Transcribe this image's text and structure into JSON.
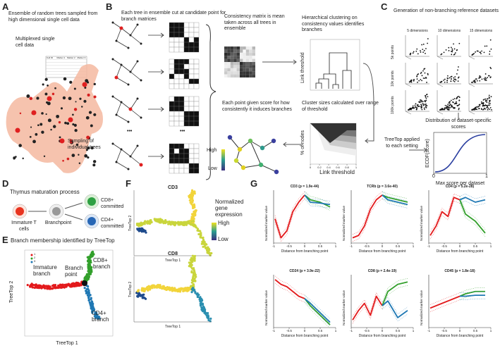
{
  "A": {
    "label": "A",
    "title": "Ensemble of random trees sampled from high dimensional single cell data",
    "table_caption": "Multiplexed single cell data",
    "table_header": [
      "Cell ID",
      "Marker 1",
      "Marker 2",
      "Marker 3"
    ],
    "sampling": "Sampling of individual trees"
  },
  "B": {
    "label": "B",
    "cut_text": "Each tree in ensemble cut at candidate point for branch matrices",
    "ellipsis": "•••",
    "consistency_text": "Consistency matrix is mean taken across all trees in ensemble",
    "clustering_text": "Hierarchical clustering on consistency values identifies branches",
    "dendro_ylabel": "Link threshold",
    "cluster_text": "Cluster sizes calculated over range of threshold",
    "area_ylabel": "% of nodes",
    "area_xlabel": "Link threshold",
    "area_xticks": [
      0,
      0.2,
      0.4,
      0.6,
      0.8,
      1
    ],
    "score_text": "Each point given score for how consistently it induces branches",
    "high": "High",
    "low": "Low"
  },
  "C": {
    "label": "C",
    "title": "Generation of non-branching reference datasets",
    "dimensions": [
      "5 dimensions",
      "10 dimensions",
      "15 dimensions"
    ],
    "points": [
      "5k points",
      "10k points",
      "100k points"
    ],
    "dist_text": "Distribution of dataset-specific scores",
    "applied_text": "TreeTop applied to each setting",
    "ecdf_ylabel": "ECDF(score)",
    "ecdf_xlabel": "Max score per dataset",
    "ecdf_xticks": [
      0,
      1
    ]
  },
  "D": {
    "label": "D",
    "title": "Thymus maturation process",
    "immature": "Immature T cells",
    "branchpoint": "Branchpoint",
    "cd8": "CD8+ committed",
    "cd4": "CD4+ committed"
  },
  "E": {
    "label": "E",
    "title": "Branch membership identified by TreeTop",
    "legend": [
      {
        "name": "1",
        "color": "#e31a1c"
      },
      {
        "name": "2",
        "color": "#33a02c"
      },
      {
        "name": "3",
        "color": "#1f78b4"
      }
    ],
    "cd8_branch": "CD8+ branch",
    "immature_branch": "Immature branch",
    "branch_point": "Branch point",
    "cd4_branch": "CD4+ branch",
    "xlabel": "TreeTop 1",
    "ylabel": "TreeTop 2"
  },
  "F": {
    "label": "F",
    "panels": [
      "CD3",
      "CD8"
    ],
    "legend_title": "Normalized gene expression",
    "high": "High",
    "low": "Low",
    "xlabel": "TreeTop 1",
    "ylabel": "TreeTop 2"
  },
  "G": {
    "label": "G",
    "charts": [
      "CD3 (p = 1.9e-44)",
      "TCRb (p = 3.6e-40)",
      "CD4 (p = 5.2e-28)",
      "CD24 (p = 3.9e-22)",
      "CD8 (p = 2.4e-19)",
      "CD45 (p = 1.8e-18)"
    ],
    "ylabel": "Normalized marker value",
    "xlabel": "Distance from branching point",
    "xlim": [
      -1,
      1
    ],
    "xticks": [
      -1,
      -0.5,
      0,
      0.5,
      1
    ]
  }
}
